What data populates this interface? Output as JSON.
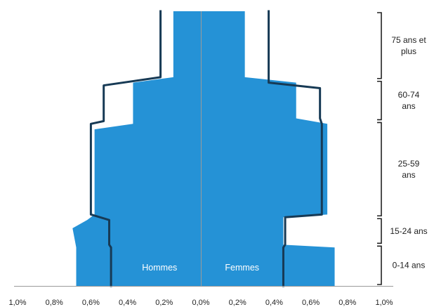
{
  "chart_data": {
    "type": "area",
    "subtype": "population-pyramid",
    "title": "",
    "xlabel": "",
    "ylabel": "",
    "x_ticks": [
      "1,0%",
      "0,8%",
      "0,6%",
      "0,4%",
      "0,2%",
      "0,0%",
      "0,2%",
      "0,4%",
      "0,6%",
      "0,8%",
      "1,0%"
    ],
    "xlim": [
      -1.0,
      1.0
    ],
    "ylim": [
      0,
      100
    ],
    "side_labels": {
      "left": "Hommes",
      "right": "Femmes"
    },
    "age_groups": [
      {
        "label": "0-14 ans",
        "from": 0,
        "to": 15
      },
      {
        "label": "15-24 ans",
        "from": 15,
        "to": 25
      },
      {
        "label": "25-59 ans",
        "from": 25,
        "to": 60
      },
      {
        "label": "60-74 ans",
        "from": 60,
        "to": 75
      },
      {
        "label": "75 ans et plus",
        "from": 75,
        "to": 100
      }
    ],
    "series": [
      {
        "role": "filled-area",
        "color": "#2592d6",
        "hommes": [
          {
            "age": 0,
            "pct": 0.68
          },
          {
            "age": 14,
            "pct": 0.68
          },
          {
            "age": 21,
            "pct": 0.7
          },
          {
            "age": 24,
            "pct": 0.62
          },
          {
            "age": 26,
            "pct": 0.58
          },
          {
            "age": 57,
            "pct": 0.58
          },
          {
            "age": 59,
            "pct": 0.37
          },
          {
            "age": 74,
            "pct": 0.37
          },
          {
            "age": 76,
            "pct": 0.15
          },
          {
            "age": 100,
            "pct": 0.15
          }
        ],
        "femmes": [
          {
            "age": 0,
            "pct": 0.73
          },
          {
            "age": 14,
            "pct": 0.73
          },
          {
            "age": 15,
            "pct": 0.45
          },
          {
            "age": 25,
            "pct": 0.45
          },
          {
            "age": 26,
            "pct": 0.69
          },
          {
            "age": 59,
            "pct": 0.69
          },
          {
            "age": 61,
            "pct": 0.52
          },
          {
            "age": 74,
            "pct": 0.52
          },
          {
            "age": 76,
            "pct": 0.24
          },
          {
            "age": 100,
            "pct": 0.24
          }
        ]
      },
      {
        "role": "outline",
        "color": "#173a55",
        "hommes": [
          {
            "age": 0,
            "pct": 0.49
          },
          {
            "age": 14,
            "pct": 0.49
          },
          {
            "age": 15,
            "pct": 0.5
          },
          {
            "age": 24,
            "pct": 0.5
          },
          {
            "age": 26,
            "pct": 0.6
          },
          {
            "age": 59,
            "pct": 0.6
          },
          {
            "age": 60,
            "pct": 0.53
          },
          {
            "age": 73,
            "pct": 0.53
          },
          {
            "age": 76,
            "pct": 0.22
          },
          {
            "age": 100,
            "pct": 0.22
          }
        ],
        "femmes": [
          {
            "age": 0,
            "pct": 0.45
          },
          {
            "age": 14,
            "pct": 0.45
          },
          {
            "age": 15,
            "pct": 0.46
          },
          {
            "age": 25,
            "pct": 0.46
          },
          {
            "age": 26,
            "pct": 0.66
          },
          {
            "age": 59,
            "pct": 0.66
          },
          {
            "age": 61,
            "pct": 0.65
          },
          {
            "age": 72,
            "pct": 0.65
          },
          {
            "age": 74,
            "pct": 0.37
          },
          {
            "age": 100,
            "pct": 0.37
          }
        ]
      }
    ],
    "colors": {
      "fill": "#2592d6",
      "outline": "#173a55",
      "axis": "#9a9a9a",
      "bracket": "#222222"
    }
  }
}
